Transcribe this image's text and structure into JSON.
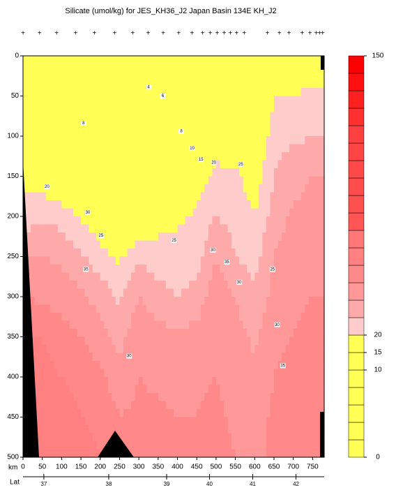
{
  "chart_data": {
    "type": "contour",
    "title": "Silicate (umol/kg) for JES_KH36_J2 Japan Basin 134E KH_J2",
    "x_label": "km",
    "lat_label": "Lat",
    "xlim": [
      0,
      780
    ],
    "ylim": [
      0,
      500
    ],
    "xticks": [
      0,
      50,
      100,
      150,
      200,
      250,
      300,
      350,
      400,
      450,
      500,
      550,
      600,
      650,
      700,
      750
    ],
    "yticks": [
      0,
      50,
      100,
      150,
      200,
      250,
      300,
      350,
      400,
      450,
      500
    ],
    "lat_ticks": [
      {
        "value": 54,
        "label": "37"
      },
      {
        "value": 222,
        "label": "38"
      },
      {
        "value": 372,
        "label": "39"
      },
      {
        "value": 483,
        "label": "40"
      },
      {
        "value": 595,
        "label": "41"
      },
      {
        "value": 707,
        "label": "42"
      }
    ],
    "stations": [
      0,
      43,
      87,
      136,
      185,
      237,
      284,
      324,
      363,
      403,
      438,
      465,
      485,
      503,
      521,
      537,
      553,
      573,
      633,
      664,
      689,
      723,
      743,
      759,
      768,
      776
    ],
    "station_symbol": "+",
    "x": [
      0,
      50,
      100,
      150,
      200,
      250,
      300,
      350,
      400,
      450,
      500,
      550,
      600,
      650,
      700,
      750,
      780
    ],
    "depth": [
      0,
      50,
      100,
      150,
      200,
      250,
      300,
      350,
      400,
      450,
      500
    ],
    "z": [
      [
        2,
        2,
        2,
        2,
        2,
        2,
        2,
        2,
        2,
        2,
        3,
        4,
        4,
        5,
        6,
        8,
        8
      ],
      [
        5,
        5,
        5,
        5,
        5,
        4,
        4,
        5,
        5,
        5,
        8,
        12,
        10,
        20,
        21,
        22,
        22
      ],
      [
        10,
        10,
        9,
        8,
        7,
        7,
        7,
        8,
        9,
        11,
        18,
        16,
        14,
        23,
        24,
        25,
        25
      ],
      [
        18,
        17,
        14,
        12,
        10,
        6,
        10,
        12,
        14,
        17,
        21,
        21,
        17,
        25,
        28,
        30,
        30
      ],
      [
        22,
        24,
        23,
        19,
        16,
        12,
        15,
        18,
        19,
        21,
        25,
        23,
        20,
        27,
        31,
        32,
        32
      ],
      [
        30,
        30,
        29,
        26,
        22,
        19,
        24,
        22,
        22,
        23,
        30,
        25,
        23,
        30,
        33,
        34,
        34
      ],
      [
        35,
        34,
        33,
        31,
        28,
        24,
        30,
        27,
        25,
        27,
        33,
        30,
        26,
        32,
        34,
        35,
        35
      ],
      [
        40,
        40,
        37,
        35,
        32,
        28,
        34,
        32,
        31,
        32,
        35,
        32,
        29,
        34,
        35,
        36,
        36
      ],
      [
        42,
        42,
        40,
        38,
        36,
        32,
        35,
        34,
        33,
        34,
        35,
        33,
        31,
        35,
        36,
        37,
        37
      ],
      [
        43,
        43,
        42,
        40,
        38,
        35,
        36,
        36,
        35,
        35,
        36,
        34,
        33,
        36,
        37,
        38,
        38
      ],
      [
        44,
        44,
        43,
        42,
        40,
        37,
        38,
        37,
        36,
        36,
        37,
        35,
        34,
        36,
        37,
        38,
        38
      ]
    ],
    "levels": [
      0,
      2,
      4,
      6,
      8,
      10,
      15,
      20,
      25,
      30,
      35,
      40,
      45,
      50,
      60,
      70,
      80,
      90,
      100,
      110,
      120,
      130,
      140,
      150
    ],
    "colors": [
      "#ffff55",
      "#ffff55",
      "#ffff55",
      "#ffff55",
      "#ffff55",
      "#ffff55",
      "#ffff55",
      "#ffcccc",
      "#ffaaaa",
      "#ff9999",
      "#ff8888",
      "#ff8080",
      "#ff7777",
      "#ff5555",
      "#ff5050",
      "#ff4c4c",
      "#ff4848",
      "#ff4444",
      "#ff4040",
      "#ff3030",
      "#ff2020",
      "#ff1010",
      "#ff0000"
    ],
    "colorbar_ticks": [
      0,
      10,
      15,
      20,
      150
    ],
    "annotations": [
      {
        "text": "4",
        "x": 325,
        "y": 39
      },
      {
        "text": "6",
        "x": 362,
        "y": 50
      },
      {
        "text": "8",
        "x": 157,
        "y": 84
      },
      {
        "text": "8",
        "x": 410,
        "y": 94
      },
      {
        "text": "10",
        "x": 438,
        "y": 115
      },
      {
        "text": "15",
        "x": 461,
        "y": 129
      },
      {
        "text": "20",
        "x": 494,
        "y": 133
      },
      {
        "text": "25",
        "x": 564,
        "y": 135
      },
      {
        "text": "20",
        "x": 62,
        "y": 163
      },
      {
        "text": "30",
        "x": 168,
        "y": 195
      },
      {
        "text": "25",
        "x": 202,
        "y": 224
      },
      {
        "text": "35",
        "x": 163,
        "y": 266
      },
      {
        "text": "25",
        "x": 391,
        "y": 230
      },
      {
        "text": "30",
        "x": 492,
        "y": 242
      },
      {
        "text": "35",
        "x": 528,
        "y": 257
      },
      {
        "text": "30",
        "x": 560,
        "y": 282
      },
      {
        "text": "25",
        "x": 646,
        "y": 266
      },
      {
        "text": "30",
        "x": 658,
        "y": 335
      },
      {
        "text": "30",
        "x": 275,
        "y": 374
      },
      {
        "text": "35",
        "x": 673,
        "y": 386
      }
    ]
  }
}
